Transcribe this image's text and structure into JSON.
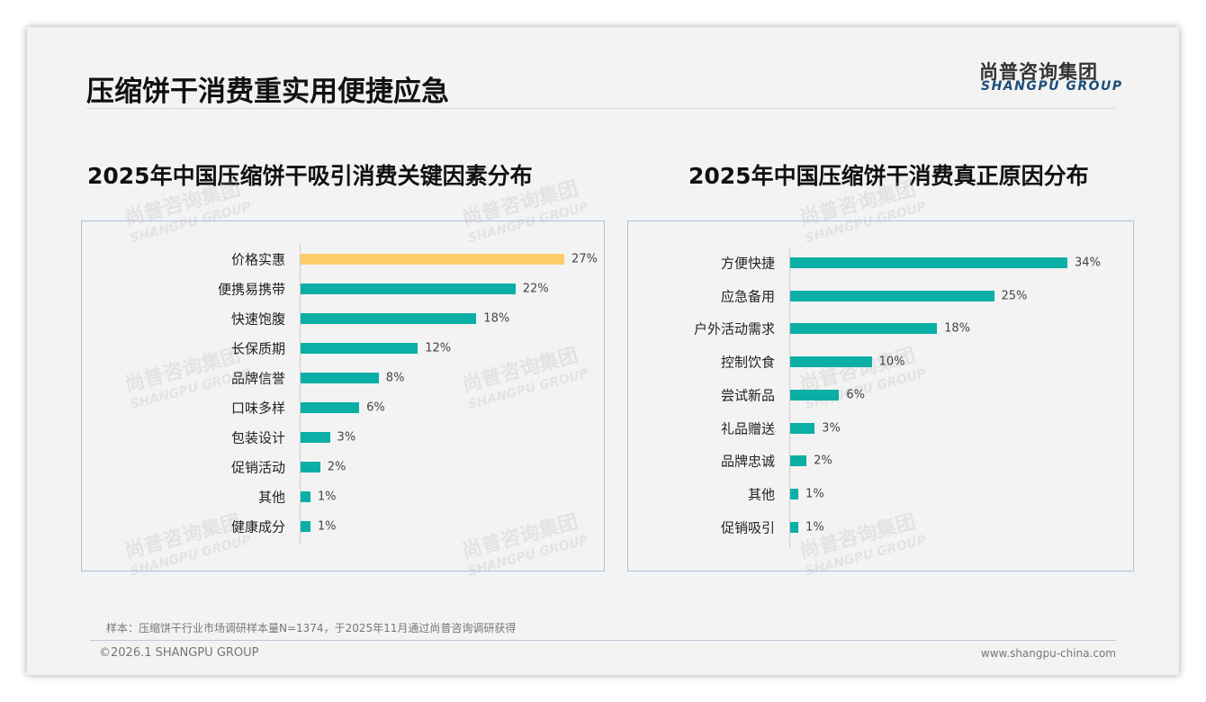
{
  "page": {
    "title": "压缩饼干消费重实用便捷应急",
    "logo_cn": "尚普咨询集团",
    "logo_en": "SHANGPU GROUP",
    "note": "样本：压缩饼干行业市场调研样本量N=1374，于2025年11月通过尚普咨询调研获得",
    "copyright": "©2026.1 SHANGPU GROUP",
    "url": "www.shangpu-china.com"
  },
  "colors": {
    "teal": "#0bafa6",
    "highlight": "#fccd6b"
  },
  "chart_data": [
    {
      "type": "bar",
      "orientation": "horizontal",
      "title": "2025年中国压缩饼干吸引消费关键因素分布",
      "categories": [
        "价格实惠",
        "便携易携带",
        "快速饱腹",
        "长保质期",
        "品牌信誉",
        "口味多样",
        "包装设计",
        "促销活动",
        "其他",
        "健康成分"
      ],
      "values": [
        27,
        22,
        18,
        12,
        8,
        6,
        3,
        2,
        1,
        1
      ],
      "labels": [
        "27%",
        "22%",
        "18%",
        "12%",
        "8%",
        "6%",
        "3%",
        "2%",
        "1%",
        "1%"
      ],
      "unit": "%",
      "highlight_index": 0,
      "xlim": [
        0,
        27
      ]
    },
    {
      "type": "bar",
      "orientation": "horizontal",
      "title": "2025年中国压缩饼干消费真正原因分布",
      "categories": [
        "方便快捷",
        "应急备用",
        "户外活动需求",
        "控制饮食",
        "尝试新品",
        "礼品赠送",
        "品牌忠诚",
        "其他",
        "促销吸引"
      ],
      "values": [
        34,
        25,
        18,
        10,
        6,
        3,
        2,
        1,
        1
      ],
      "labels": [
        "34%",
        "25%",
        "18%",
        "10%",
        "6%",
        "3%",
        "2%",
        "1%",
        "1%"
      ],
      "unit": "%",
      "highlight_index": -1,
      "xlim": [
        0,
        34
      ]
    }
  ]
}
